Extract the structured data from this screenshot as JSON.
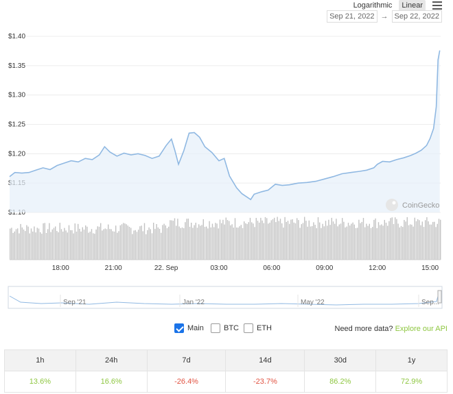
{
  "toolbar": {
    "log_label": "Logarithmic",
    "linear_label": "Linear",
    "menu_icon": "hamburger-menu-icon",
    "date_from": "Sep 21, 2022",
    "date_arrow": "→",
    "date_to": "Sep 22, 2022"
  },
  "chart_data": {
    "type": "line",
    "yticks": [
      "$1.40",
      "$1.35",
      "$1.30",
      "$1.25",
      "$1.20",
      "$1.15",
      "$1.10"
    ],
    "ytick_values": [
      1.4,
      1.35,
      1.3,
      1.25,
      1.2,
      1.15,
      1.1
    ],
    "ylim": [
      1.1,
      1.4
    ],
    "xticks": [
      "18:00",
      "21:00",
      "22. Sep",
      "03:00",
      "06:00",
      "09:00",
      "12:00",
      "15:00"
    ],
    "xtick_hours": [
      18,
      21,
      24,
      27,
      30,
      33,
      36,
      39
    ],
    "xlim_hours": [
      15.1,
      39.6
    ],
    "grid": true,
    "series": [
      {
        "values": [
          [
            15.1,
            1.161
          ],
          [
            15.4,
            1.168
          ],
          [
            15.8,
            1.167
          ],
          [
            16.2,
            1.168
          ],
          [
            16.6,
            1.172
          ],
          [
            17.0,
            1.176
          ],
          [
            17.4,
            1.173
          ],
          [
            17.8,
            1.18
          ],
          [
            18.2,
            1.184
          ],
          [
            18.6,
            1.188
          ],
          [
            19.0,
            1.186
          ],
          [
            19.4,
            1.192
          ],
          [
            19.8,
            1.19
          ],
          [
            20.2,
            1.198
          ],
          [
            20.5,
            1.212
          ],
          [
            20.8,
            1.203
          ],
          [
            21.2,
            1.196
          ],
          [
            21.6,
            1.201
          ],
          [
            22.0,
            1.198
          ],
          [
            22.4,
            1.2
          ],
          [
            22.8,
            1.197
          ],
          [
            23.2,
            1.192
          ],
          [
            23.6,
            1.196
          ],
          [
            24.0,
            1.214
          ],
          [
            24.3,
            1.225
          ],
          [
            24.5,
            1.205
          ],
          [
            24.7,
            1.182
          ],
          [
            25.0,
            1.205
          ],
          [
            25.3,
            1.235
          ],
          [
            25.6,
            1.236
          ],
          [
            25.9,
            1.228
          ],
          [
            26.2,
            1.212
          ],
          [
            26.6,
            1.202
          ],
          [
            27.0,
            1.188
          ],
          [
            27.3,
            1.192
          ],
          [
            27.6,
            1.162
          ],
          [
            28.0,
            1.142
          ],
          [
            28.3,
            1.132
          ],
          [
            28.6,
            1.126
          ],
          [
            28.8,
            1.122
          ],
          [
            29.0,
            1.131
          ],
          [
            29.4,
            1.135
          ],
          [
            29.8,
            1.138
          ],
          [
            30.2,
            1.148
          ],
          [
            30.6,
            1.146
          ],
          [
            31.0,
            1.147
          ],
          [
            31.5,
            1.15
          ],
          [
            32.0,
            1.151
          ],
          [
            32.5,
            1.153
          ],
          [
            33.0,
            1.157
          ],
          [
            33.5,
            1.161
          ],
          [
            34.0,
            1.166
          ],
          [
            34.5,
            1.168
          ],
          [
            35.0,
            1.17
          ],
          [
            35.4,
            1.172
          ],
          [
            35.8,
            1.176
          ],
          [
            36.0,
            1.182
          ],
          [
            36.3,
            1.187
          ],
          [
            36.7,
            1.186
          ],
          [
            37.1,
            1.19
          ],
          [
            37.5,
            1.193
          ],
          [
            37.9,
            1.197
          ],
          [
            38.2,
            1.201
          ],
          [
            38.5,
            1.206
          ],
          [
            38.8,
            1.214
          ],
          [
            39.0,
            1.226
          ],
          [
            39.2,
            1.243
          ],
          [
            39.35,
            1.28
          ],
          [
            39.45,
            1.36
          ],
          [
            39.55,
            1.376
          ]
        ]
      }
    ],
    "navigator_ticks": [
      "Sep '21",
      "Jan '22",
      "May '22",
      "Sep..."
    ]
  },
  "watermark": {
    "text": "CoinGecko",
    "icon": "coingecko-logo-icon"
  },
  "series_toggles": [
    {
      "label": "Main",
      "checked": true
    },
    {
      "label": "BTC",
      "checked": false
    },
    {
      "label": "ETH",
      "checked": false
    }
  ],
  "api": {
    "text": "Need more data?",
    "link": "Explore our API"
  },
  "performance": {
    "headers": [
      "1h",
      "24h",
      "7d",
      "14d",
      "30d",
      "1y"
    ],
    "values": [
      "13.6%",
      "16.6%",
      "-26.4%",
      "-23.7%",
      "86.2%",
      "72.9%"
    ]
  },
  "colors": {
    "line": "#8fb8e2",
    "area": "#e6f0fa",
    "volume": "#c2c2c2",
    "positive": "#8dc63f",
    "negative": "#e15241"
  }
}
